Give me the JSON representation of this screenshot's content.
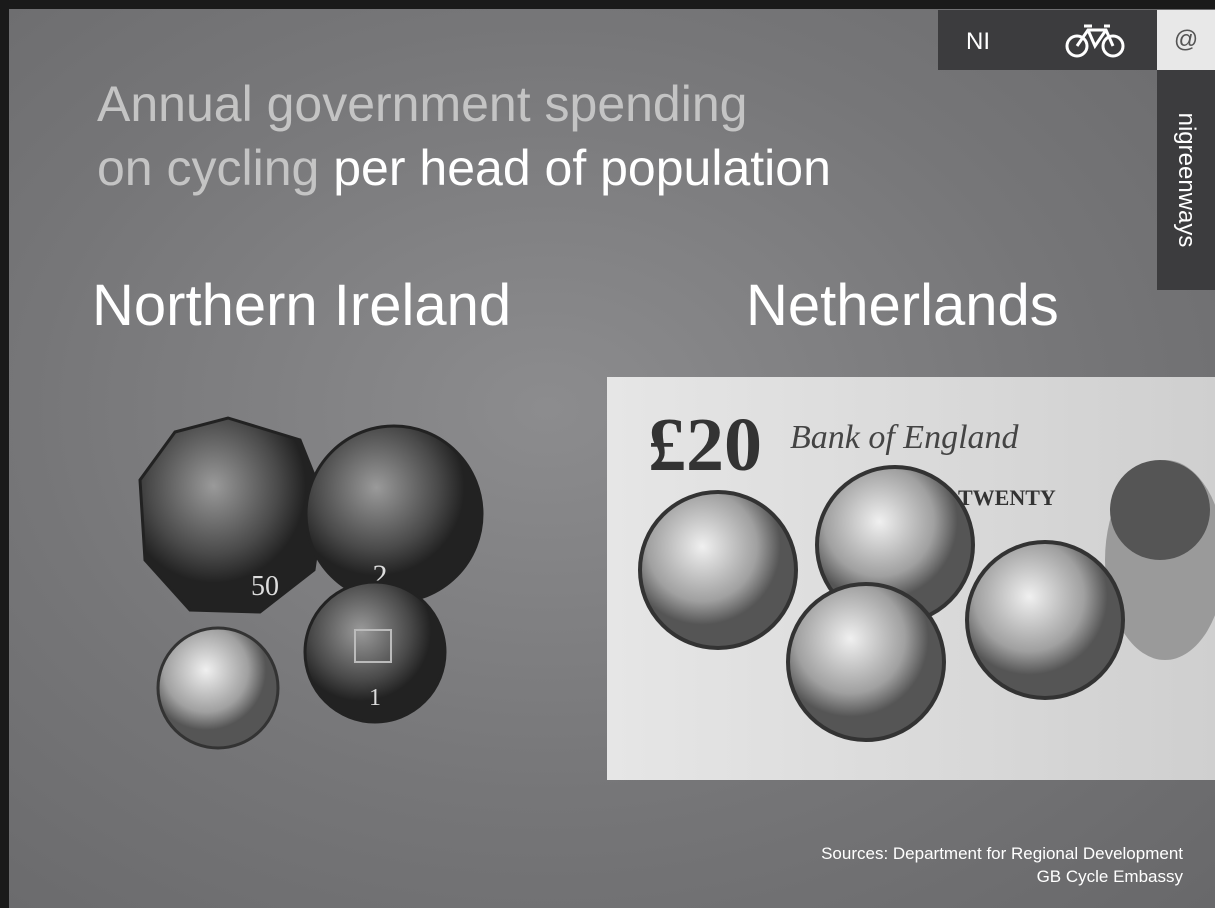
{
  "header": {
    "region": "NI",
    "handle_icon": "@",
    "handle": "nigreenways"
  },
  "title": {
    "muted_line1": "Annual government spending",
    "muted_line2": "on cycling",
    "highlight": "per head of population"
  },
  "left": {
    "label": "Northern Ireland",
    "coins": [
      "50",
      "2",
      "1"
    ]
  },
  "right": {
    "label": "Netherlands",
    "note_value": "£20",
    "note_word": "TWENTY",
    "bank": "Bank of England"
  },
  "sources": [
    "Sources: Department for Regional Development",
    "GB Cycle Embassy"
  ]
}
